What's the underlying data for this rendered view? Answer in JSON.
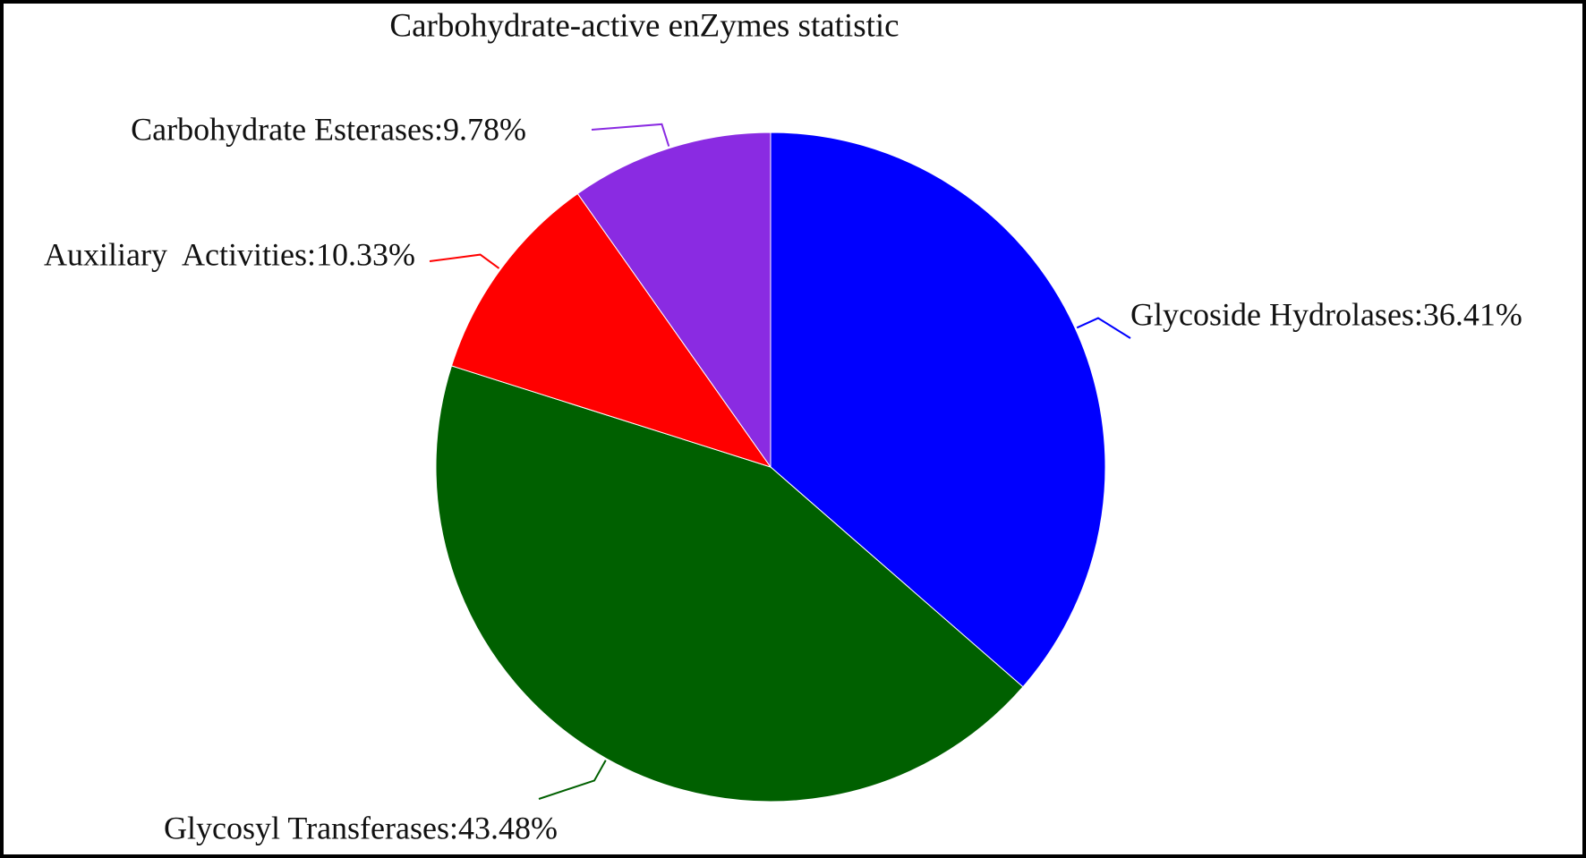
{
  "chart_data": {
    "type": "pie",
    "title": "Carbohydrate-active enZymes statistic",
    "values": [
      36.41,
      43.48,
      10.33,
      9.78
    ],
    "value_labels": [
      "Glycoside Hydrolases:36.41%",
      "Glycosyl Transferases:43.48%",
      "Auxiliary  Activities:10.33%",
      "Carbohydrate Esterases:9.78%"
    ],
    "colors": [
      "#0000ff",
      "#006000",
      "#ff0000",
      "#8a2be2"
    ]
  }
}
